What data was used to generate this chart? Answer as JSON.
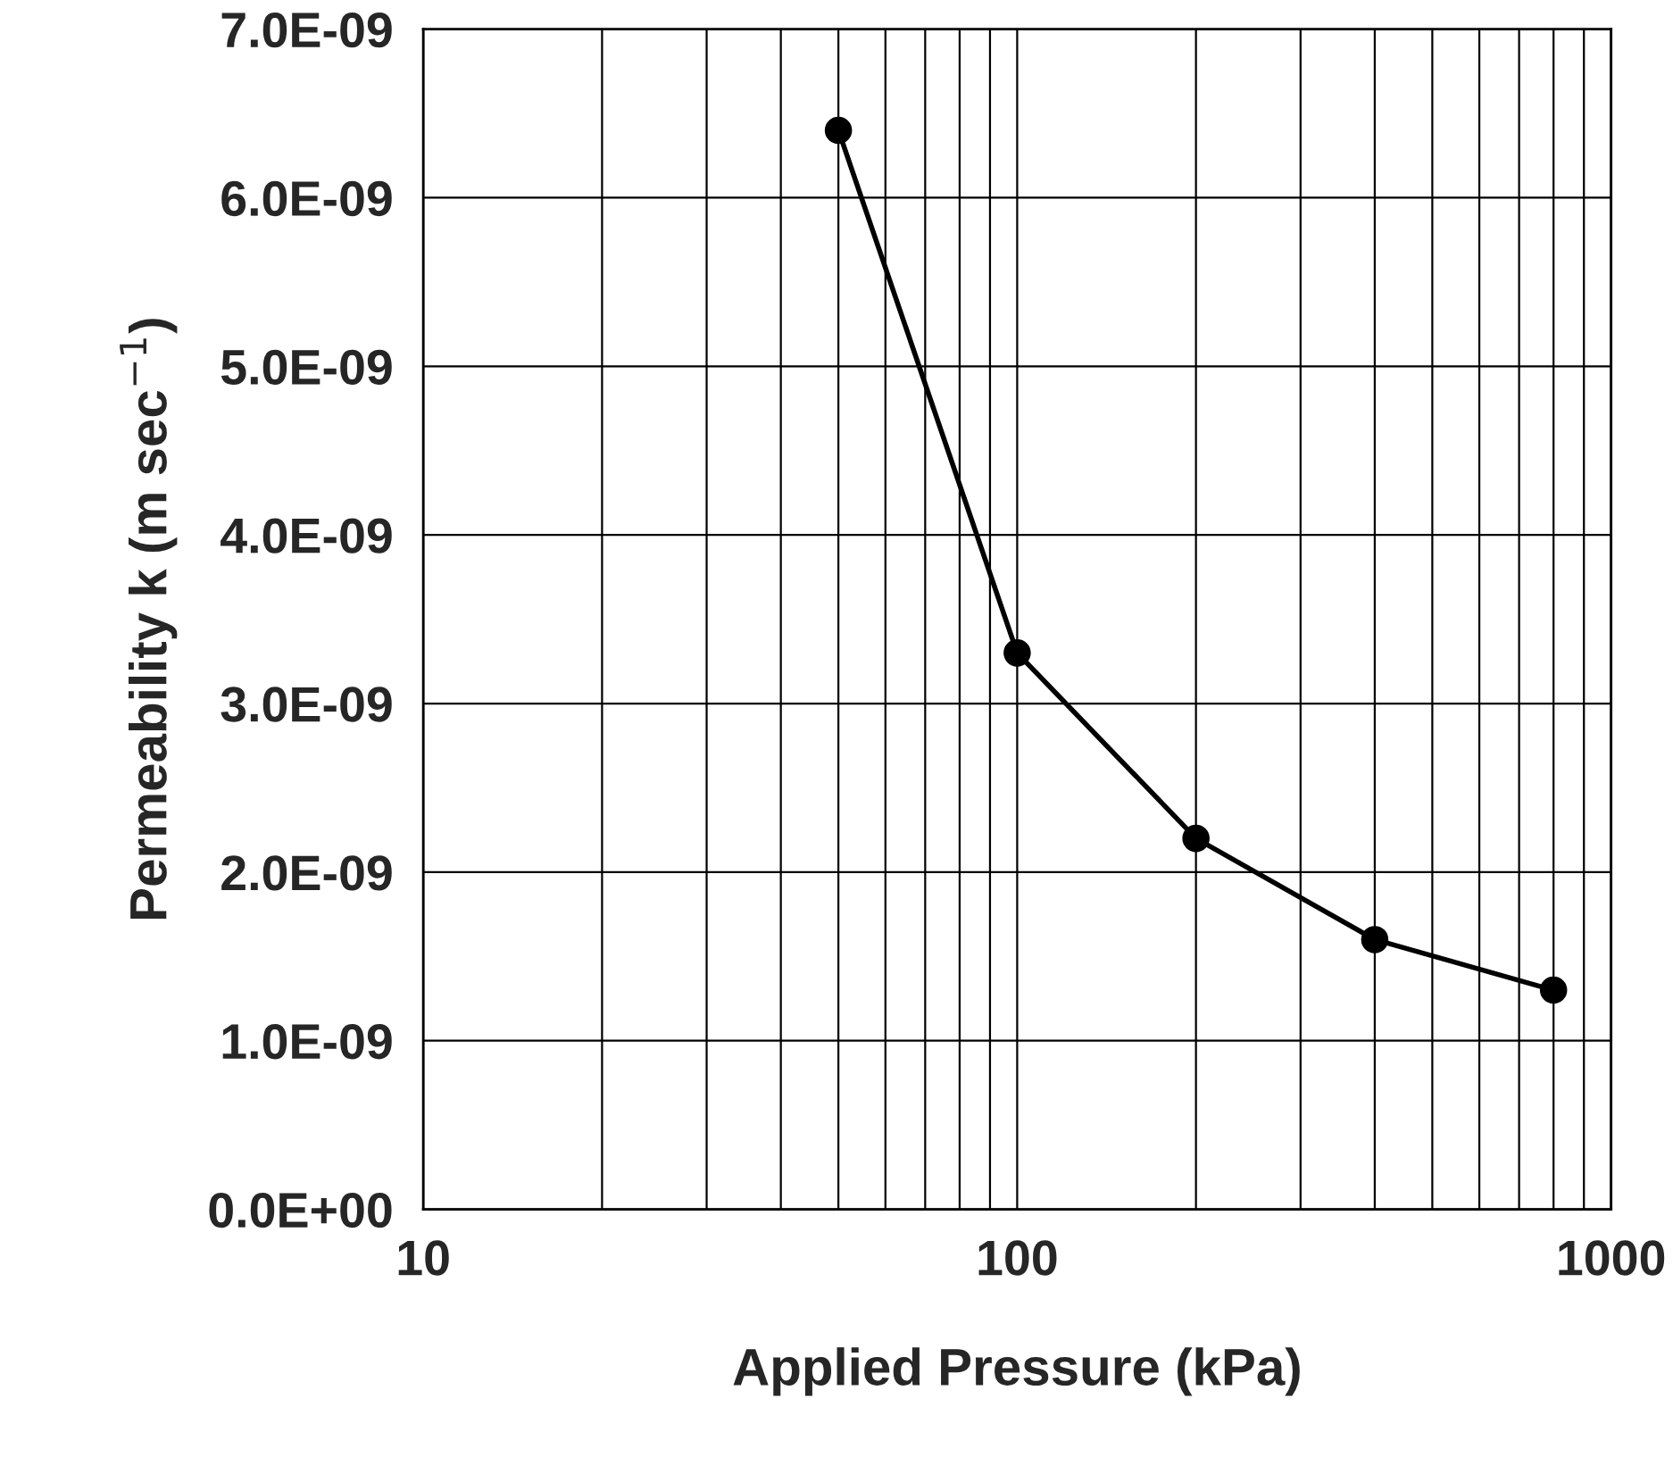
{
  "chart_data": {
    "type": "line",
    "xlabel": "Applied Pressure (kPa)",
    "ylabel": "Permeability k (m sec$^{−1}$)",
    "x": [
      50,
      100,
      200,
      400,
      800
    ],
    "series": [
      {
        "color": "#000000",
        "values": [
          6.4e-09,
          3.3e-09,
          2.2e-09,
          1.6e-09,
          1.3e-09
        ]
      }
    ],
    "log": "x",
    "xlim": [
      10,
      1000
    ],
    "xticks": [
      10,
      {
        "value": 20,
        "label": null
      },
      {
        "value": 30,
        "label": null
      },
      {
        "value": 40,
        "label": null
      },
      {
        "value": 50,
        "label": null
      },
      {
        "value": 60,
        "label": null
      },
      {
        "value": 70,
        "label": null
      },
      {
        "value": 80,
        "label": null
      },
      {
        "value": 90,
        "label": null
      },
      100,
      {
        "value": 200,
        "label": null
      },
      {
        "value": 300,
        "label": null
      },
      {
        "value": 400,
        "label": null
      },
      {
        "value": 500,
        "label": null
      },
      {
        "value": 600,
        "label": null
      },
      {
        "value": 700,
        "label": null
      },
      {
        "value": 800,
        "label": null
      },
      {
        "value": 900,
        "label": null
      },
      1000
    ],
    "ylim": [
      0,
      7e-09
    ],
    "yticks": [
      {
        "value": 0,
        "label": "0.0E+00"
      },
      {
        "value": 1e-09,
        "label": "1.0E-09"
      },
      {
        "value": 2e-09,
        "label": "2.0E-09"
      },
      {
        "value": 3e-09,
        "label": "3.0E-09"
      },
      {
        "value": 4e-09,
        "label": "4.0E-09"
      },
      {
        "value": 5e-09,
        "label": "5.0E-09"
      },
      {
        "value": 6e-09,
        "label": "6.0E-09"
      },
      {
        "value": 7e-09,
        "label": "7.0E-09"
      }
    ],
    "grid": true,
    "marker": "circle",
    "line_style": "solid",
    "legend": false
  }
}
